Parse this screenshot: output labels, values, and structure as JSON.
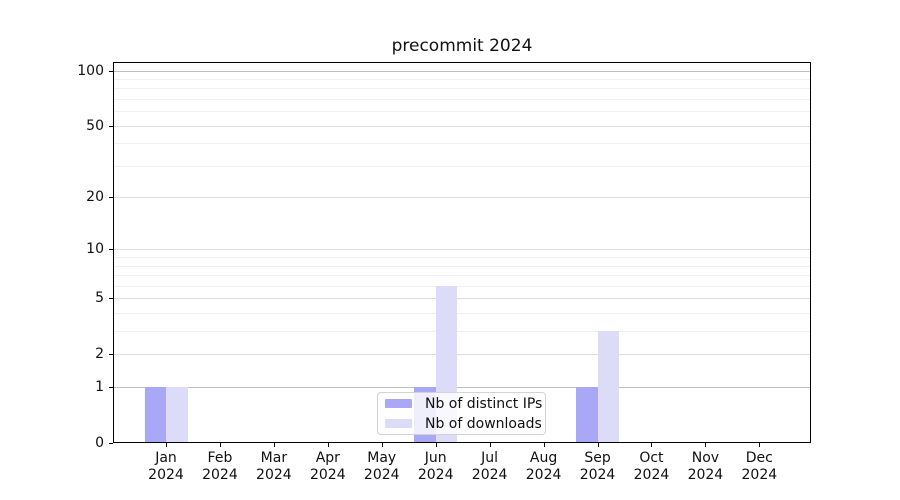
{
  "chart_data": {
    "type": "bar",
    "title": "precommit 2024",
    "categories": [
      "Jan",
      "Feb",
      "Mar",
      "Apr",
      "May",
      "Jun",
      "Jul",
      "Aug",
      "Sep",
      "Oct",
      "Nov",
      "Dec"
    ],
    "category_year": "2024",
    "series": [
      {
        "name": "Nb of distinct IPs",
        "color": "#a8a8f6",
        "values": [
          1,
          0,
          0,
          0,
          0,
          1,
          0,
          0,
          1,
          0,
          0,
          0
        ]
      },
      {
        "name": "Nb of downloads",
        "color": "#dcdcf9",
        "values": [
          1,
          0,
          0,
          0,
          0,
          6,
          0,
          0,
          3,
          0,
          0,
          0
        ]
      }
    ],
    "xlabel": "",
    "ylabel": "",
    "ylim": [
      0,
      100
    ],
    "yscale": "log1p",
    "y_major_ticks": [
      0,
      1,
      2,
      5,
      10,
      20,
      50,
      100
    ],
    "y_minor_ticks": [
      3,
      4,
      6,
      7,
      8,
      9,
      30,
      40,
      60,
      70,
      80,
      90
    ],
    "emphasized_gridlines": [
      1,
      100
    ],
    "grid": "horizontal",
    "legend_position": "lower-center-inside"
  }
}
